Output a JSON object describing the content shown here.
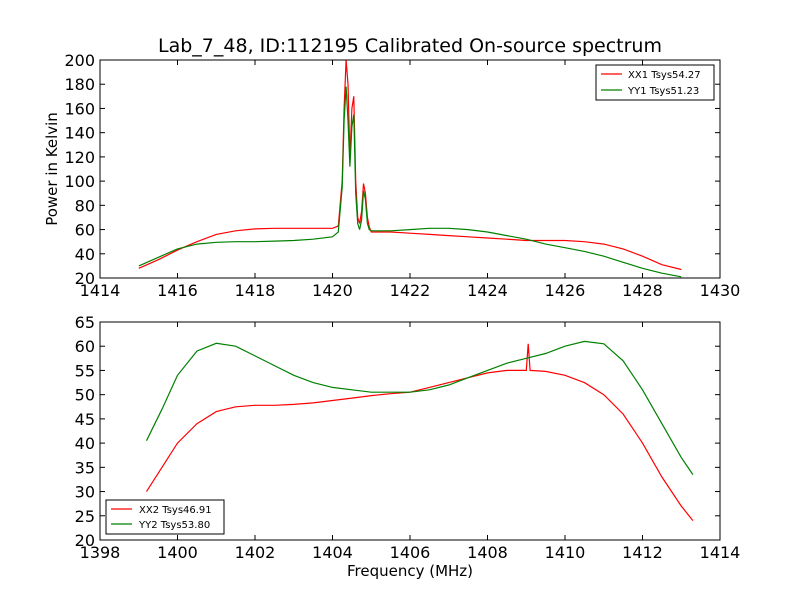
{
  "chart_data": [
    {
      "type": "line",
      "title": "Lab_7_48, ID:112195 Calibrated On-source spectrum",
      "xlabel": "",
      "ylabel": "Power in Kelvin",
      "xlim": [
        1414,
        1430
      ],
      "ylim": [
        20,
        200
      ],
      "xticks": [
        1414,
        1416,
        1418,
        1420,
        1422,
        1424,
        1426,
        1428,
        1430
      ],
      "yticks": [
        20,
        40,
        60,
        80,
        100,
        120,
        140,
        160,
        180,
        200
      ],
      "legend_position": "top-right",
      "series": [
        {
          "name": "XX1 Tsys54.27",
          "color": "#ff0000",
          "x": [
            1415.0,
            1415.5,
            1416.0,
            1416.5,
            1417.0,
            1417.5,
            1418.0,
            1418.5,
            1419.0,
            1419.5,
            1420.0,
            1420.15,
            1420.25,
            1420.3,
            1420.35,
            1420.4,
            1420.45,
            1420.5,
            1420.55,
            1420.6,
            1420.65,
            1420.7,
            1420.75,
            1420.8,
            1420.85,
            1420.9,
            1420.95,
            1421.0,
            1421.5,
            1422.0,
            1422.5,
            1423.0,
            1423.5,
            1424.0,
            1424.5,
            1425.0,
            1425.5,
            1426.0,
            1426.5,
            1427.0,
            1427.5,
            1428.0,
            1428.5,
            1429.0
          ],
          "values": [
            28,
            35,
            43,
            50,
            56,
            59,
            60.5,
            61,
            61,
            61,
            61,
            63,
            100,
            160,
            200,
            180,
            120,
            160,
            170,
            100,
            70,
            65,
            75,
            98,
            90,
            70,
            62,
            58,
            58,
            57,
            56,
            55,
            54,
            53,
            52,
            51,
            51,
            51,
            50,
            48,
            44,
            38,
            31,
            27
          ]
        },
        {
          "name": "YY1 Tsys51.23",
          "color": "#008000",
          "x": [
            1415.0,
            1415.5,
            1416.0,
            1416.5,
            1417.0,
            1417.5,
            1418.0,
            1418.5,
            1419.0,
            1419.5,
            1420.0,
            1420.15,
            1420.25,
            1420.3,
            1420.35,
            1420.4,
            1420.45,
            1420.5,
            1420.55,
            1420.6,
            1420.65,
            1420.7,
            1420.75,
            1420.8,
            1420.85,
            1420.9,
            1420.95,
            1421.0,
            1421.5,
            1422.0,
            1422.5,
            1423.0,
            1423.5,
            1424.0,
            1424.5,
            1425.0,
            1425.5,
            1426.0,
            1426.5,
            1427.0,
            1427.5,
            1428.0,
            1428.5,
            1429.0
          ],
          "values": [
            30,
            37,
            44,
            48,
            49.5,
            50,
            50,
            50.5,
            51,
            52,
            54,
            58,
            95,
            150,
            178,
            150,
            112,
            145,
            155,
            90,
            65,
            60,
            68,
            92,
            85,
            65,
            60,
            59,
            59,
            60,
            61,
            61,
            60,
            58,
            55,
            52,
            48,
            45,
            42,
            38,
            33,
            28,
            24,
            21
          ]
        }
      ]
    },
    {
      "type": "line",
      "title": "",
      "xlabel": "Frequency (MHz)",
      "ylabel": "",
      "xlim": [
        1398,
        1414
      ],
      "ylim": [
        20,
        65
      ],
      "xticks": [
        1398,
        1400,
        1402,
        1404,
        1406,
        1408,
        1410,
        1412,
        1414
      ],
      "yticks": [
        20,
        25,
        30,
        35,
        40,
        45,
        50,
        55,
        60,
        65
      ],
      "legend_position": "bottom-left",
      "series": [
        {
          "name": "XX2 Tsys46.91",
          "color": "#ff0000",
          "x": [
            1399.2,
            1399.6,
            1400.0,
            1400.5,
            1401.0,
            1401.5,
            1402.0,
            1402.5,
            1403.0,
            1403.5,
            1404.0,
            1404.5,
            1405.0,
            1405.5,
            1406.0,
            1406.5,
            1407.0,
            1407.5,
            1408.0,
            1408.5,
            1409.0,
            1409.05,
            1409.1,
            1409.5,
            1410.0,
            1410.5,
            1411.0,
            1411.5,
            1412.0,
            1412.5,
            1413.0,
            1413.3
          ],
          "values": [
            30,
            35,
            40,
            44,
            46.5,
            47.5,
            47.8,
            47.8,
            48,
            48.3,
            48.8,
            49.3,
            49.8,
            50.2,
            50.5,
            51.5,
            52.5,
            53.5,
            54.5,
            55,
            55,
            60.5,
            55,
            54.8,
            54,
            52.5,
            50,
            46,
            40,
            33,
            27,
            24
          ]
        },
        {
          "name": "YY2 Tsys53.80",
          "color": "#008000",
          "x": [
            1399.2,
            1399.6,
            1400.0,
            1400.5,
            1401.0,
            1401.5,
            1402.0,
            1402.5,
            1403.0,
            1403.5,
            1404.0,
            1404.5,
            1405.0,
            1405.5,
            1406.0,
            1406.5,
            1407.0,
            1407.5,
            1408.0,
            1408.5,
            1409.0,
            1409.5,
            1410.0,
            1410.5,
            1411.0,
            1411.5,
            1412.0,
            1412.5,
            1413.0,
            1413.3
          ],
          "values": [
            40.5,
            47,
            54,
            59,
            60.6,
            60,
            58,
            56,
            54,
            52.5,
            51.5,
            51,
            50.5,
            50.5,
            50.5,
            51,
            52,
            53.5,
            55,
            56.5,
            57.5,
            58.5,
            60,
            61,
            60.5,
            57,
            51,
            44,
            37,
            33.5
          ]
        }
      ]
    }
  ]
}
